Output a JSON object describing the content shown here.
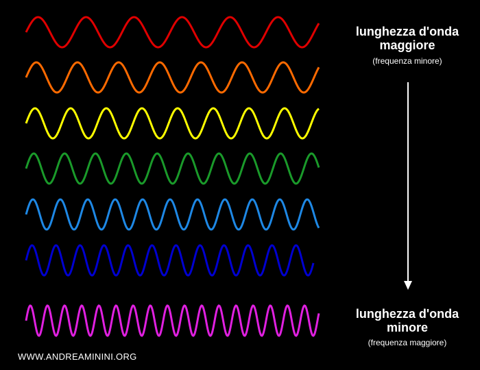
{
  "top": {
    "title": "lunghezza d'onda maggiore",
    "subtitle": "(frequenza minore)"
  },
  "bottom": {
    "title": "lunghezza d'onda minore",
    "subtitle": "(frequenza maggiore)"
  },
  "footer": "WWW.ANDREAMININI.ORG"
}
